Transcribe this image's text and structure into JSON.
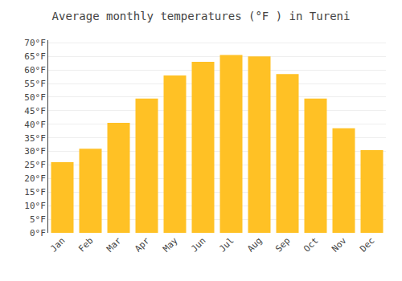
{
  "chart_data": {
    "type": "bar",
    "title": "Average monthly temperatures (°F ) in Tureni",
    "categories": [
      "Jan",
      "Feb",
      "Mar",
      "Apr",
      "May",
      "Jun",
      "Jul",
      "Aug",
      "Sep",
      "Oct",
      "Nov",
      "Dec"
    ],
    "values": [
      26,
      31,
      40.5,
      49.5,
      58,
      63,
      65.5,
      65,
      58.5,
      49.5,
      38.5,
      30.5
    ],
    "color": "#FFC125",
    "ylim": [
      0,
      71
    ],
    "yticks": [
      {
        "value": 0,
        "label": "0°F"
      },
      {
        "value": 5,
        "label": "5°F"
      },
      {
        "value": 10,
        "label": "10°F"
      },
      {
        "value": 15,
        "label": "15°F"
      },
      {
        "value": 20,
        "label": "20°F"
      },
      {
        "value": 25,
        "label": "25°F"
      },
      {
        "value": 30,
        "label": "30°F"
      },
      {
        "value": 35,
        "label": "35°F"
      },
      {
        "value": 40,
        "label": "40°F"
      },
      {
        "value": 45,
        "label": "45°F"
      },
      {
        "value": 50,
        "label": "50°F"
      },
      {
        "value": 55,
        "label": "55°F"
      },
      {
        "value": 60,
        "label": "60°F"
      },
      {
        "value": 65,
        "label": "65°F"
      },
      {
        "value": 70,
        "label": "70°F"
      }
    ],
    "grid": true
  }
}
